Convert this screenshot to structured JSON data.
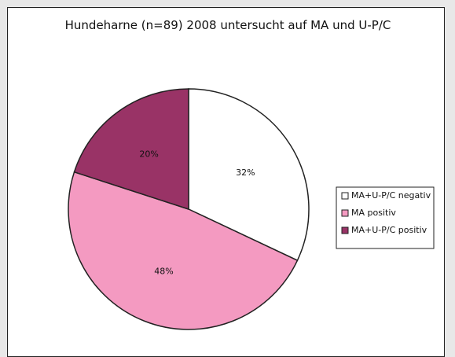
{
  "chart_data": {
    "type": "pie",
    "title": "Hundeharne (n=89) 2008 untersucht auf MA und U-P/C",
    "categories": [
      "MA+U-P/C negativ",
      "MA positiv",
      "MA+U-P/C positiv"
    ],
    "values": [
      32,
      48,
      20
    ],
    "value_labels": [
      "32%",
      "48%",
      "20%"
    ],
    "colors": [
      "#ffffff",
      "#f49ac1",
      "#993366"
    ],
    "legend": "right"
  }
}
